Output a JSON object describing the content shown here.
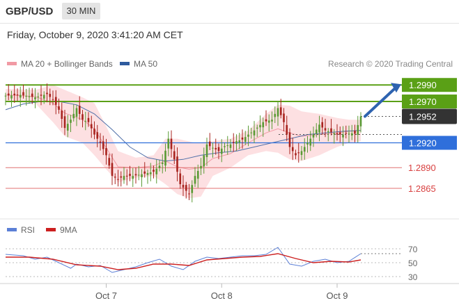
{
  "header": {
    "symbol": "GBP/USD",
    "timeframe": "30 MIN"
  },
  "date_line": "Friday, October 9, 2020 3:41:20 AM CET",
  "legend": {
    "ma20_bb": {
      "label": "MA 20 + Bollinger Bands",
      "color": "#f19aa4"
    },
    "ma50": {
      "label": "MA 50",
      "color": "#2e5b9e"
    }
  },
  "credit": "Research © 2020 Trading Central",
  "rsi_legend": {
    "rsi": {
      "label": "RSI",
      "color": "#5b7fd6"
    },
    "ma9": {
      "label": "9MA",
      "color": "#cc1f1f"
    }
  },
  "chart_data": [
    {
      "type": "line",
      "title": "GBP/USD 30 MIN",
      "ylim": [
        1.2828,
        1.3007
      ],
      "x_ticks": [
        {
          "label": "Oct 7",
          "index": 34
        },
        {
          "label": "Oct 8",
          "index": 73
        },
        {
          "label": "Oct 9",
          "index": 112
        }
      ],
      "price_series": {
        "name": "GBP/USD",
        "color_up": "#5a9a35",
        "color_down": "#a8241f",
        "anchors": [
          [
            0,
            1.2977
          ],
          [
            5,
            1.2978
          ],
          [
            10,
            1.2975
          ],
          [
            14,
            1.2979
          ],
          [
            16,
            1.2972
          ],
          [
            18,
            1.296
          ],
          [
            20,
            1.2938
          ],
          [
            22,
            1.2948
          ],
          [
            24,
            1.2962
          ],
          [
            26,
            1.2948
          ],
          [
            28,
            1.2945
          ],
          [
            30,
            1.293
          ],
          [
            32,
            1.292
          ],
          [
            34,
            1.2905
          ],
          [
            36,
            1.288
          ],
          [
            38,
            1.2876
          ],
          [
            40,
            1.288
          ],
          [
            43,
            1.288
          ],
          [
            46,
            1.2882
          ],
          [
            50,
            1.2885
          ],
          [
            53,
            1.2896
          ],
          [
            55,
            1.2925
          ],
          [
            57,
            1.29
          ],
          [
            59,
            1.287
          ],
          [
            61,
            1.2862
          ],
          [
            62,
            1.2858
          ],
          [
            64,
            1.288
          ],
          [
            66,
            1.2892
          ],
          [
            68,
            1.2918
          ],
          [
            70,
            1.2914
          ],
          [
            72,
            1.291
          ],
          [
            74,
            1.2916
          ],
          [
            76,
            1.2918
          ],
          [
            78,
            1.2922
          ],
          [
            80,
            1.2924
          ],
          [
            82,
            1.293
          ],
          [
            84,
            1.2935
          ],
          [
            87,
            1.2945
          ],
          [
            90,
            1.2948
          ],
          [
            92,
            1.2962
          ],
          [
            94,
            1.2945
          ],
          [
            96,
            1.2915
          ],
          [
            98,
            1.2905
          ],
          [
            100,
            1.291
          ],
          [
            102,
            1.292
          ],
          [
            104,
            1.293
          ],
          [
            106,
            1.2942
          ],
          [
            108,
            1.2935
          ],
          [
            110,
            1.2933
          ],
          [
            112,
            1.293
          ],
          [
            114,
            1.293
          ],
          [
            116,
            1.2932
          ],
          [
            118,
            1.2931
          ],
          [
            120,
            1.2952
          ]
        ],
        "last_price": 1.2952,
        "forecast_target": 1.299
      },
      "bollinger": {
        "name": "MA 20 + Bollinger Bands",
        "upper": [
          [
            0,
            1.2985
          ],
          [
            10,
            1.2984
          ],
          [
            16,
            1.299
          ],
          [
            20,
            1.2984
          ],
          [
            26,
            1.2975
          ],
          [
            30,
            1.2968
          ],
          [
            34,
            1.294
          ],
          [
            38,
            1.291
          ],
          [
            44,
            1.2902
          ],
          [
            50,
            1.2905
          ],
          [
            54,
            1.2925
          ],
          [
            58,
            1.2925
          ],
          [
            64,
            1.292
          ],
          [
            70,
            1.2922
          ],
          [
            76,
            1.2925
          ],
          [
            82,
            1.2935
          ],
          [
            88,
            1.2955
          ],
          [
            92,
            1.2966
          ],
          [
            96,
            1.2965
          ],
          [
            100,
            1.2958
          ],
          [
            106,
            1.2955
          ],
          [
            112,
            1.295
          ],
          [
            116,
            1.2948
          ],
          [
            120,
            1.2948
          ]
        ],
        "lower": [
          [
            0,
            1.297
          ],
          [
            10,
            1.2968
          ],
          [
            16,
            1.2945
          ],
          [
            20,
            1.2928
          ],
          [
            26,
            1.292
          ],
          [
            30,
            1.2905
          ],
          [
            34,
            1.2888
          ],
          [
            38,
            1.2872
          ],
          [
            44,
            1.2878
          ],
          [
            50,
            1.288
          ],
          [
            54,
            1.287
          ],
          [
            58,
            1.2858
          ],
          [
            62,
            1.2853
          ],
          [
            66,
            1.2855
          ],
          [
            70,
            1.288
          ],
          [
            76,
            1.289
          ],
          [
            82,
            1.2905
          ],
          [
            88,
            1.291
          ],
          [
            92,
            1.2908
          ],
          [
            96,
            1.29
          ],
          [
            100,
            1.2898
          ],
          [
            106,
            1.2905
          ],
          [
            112,
            1.2915
          ],
          [
            116,
            1.292
          ],
          [
            120,
            1.2922
          ]
        ],
        "middle": [
          [
            0,
            1.2978
          ],
          [
            10,
            1.2976
          ],
          [
            16,
            1.2968
          ],
          [
            20,
            1.2956
          ],
          [
            26,
            1.2948
          ],
          [
            30,
            1.2937
          ],
          [
            34,
            1.2914
          ],
          [
            38,
            1.2891
          ],
          [
            44,
            1.289
          ],
          [
            50,
            1.2892
          ],
          [
            54,
            1.2898
          ],
          [
            58,
            1.2891
          ],
          [
            62,
            1.2888
          ],
          [
            66,
            1.289
          ],
          [
            70,
            1.2901
          ],
          [
            76,
            1.2907
          ],
          [
            82,
            1.292
          ],
          [
            88,
            1.2932
          ],
          [
            92,
            1.2937
          ],
          [
            96,
            1.2932
          ],
          [
            100,
            1.2928
          ],
          [
            106,
            1.293
          ],
          [
            112,
            1.2932
          ],
          [
            116,
            1.2934
          ],
          [
            120,
            1.2935
          ]
        ]
      },
      "ma50": {
        "name": "MA 50",
        "values": [
          [
            0,
            1.296
          ],
          [
            6,
            1.2967
          ],
          [
            12,
            1.297
          ],
          [
            18,
            1.297
          ],
          [
            24,
            1.2966
          ],
          [
            30,
            1.2955
          ],
          [
            36,
            1.2936
          ],
          [
            42,
            1.2915
          ],
          [
            48,
            1.2902
          ],
          [
            54,
            1.2898
          ],
          [
            60,
            1.29
          ],
          [
            66,
            1.2905
          ],
          [
            72,
            1.2908
          ],
          [
            78,
            1.291
          ],
          [
            84,
            1.2915
          ],
          [
            90,
            1.292
          ],
          [
            96,
            1.2925
          ],
          [
            102,
            1.293
          ],
          [
            108,
            1.2932
          ],
          [
            114,
            1.2934
          ],
          [
            120,
            1.2935
          ]
        ]
      },
      "levels": [
        {
          "value": 1.299,
          "label": "1.2990",
          "kind": "resistance",
          "color": "#5aa016"
        },
        {
          "value": 1.297,
          "label": "1.2970",
          "kind": "resistance",
          "color": "#5aa016"
        },
        {
          "value": 1.2952,
          "label": "1.2952",
          "kind": "last",
          "color": "#333333"
        },
        {
          "value": 1.292,
          "label": "1.2920",
          "kind": "pivot",
          "color": "#2f6fdb"
        },
        {
          "value": 1.289,
          "label": "1.2890",
          "kind": "support",
          "color": "#e07070"
        },
        {
          "value": 1.2865,
          "label": "1.2865",
          "kind": "support",
          "color": "#e07070"
        }
      ]
    },
    {
      "type": "line",
      "title": "RSI",
      "ylim": [
        20,
        80
      ],
      "y_ticks": [
        70,
        50,
        30
      ],
      "series": [
        {
          "name": "RSI",
          "values": [
            [
              0,
              62
            ],
            [
              6,
              60
            ],
            [
              10,
              55
            ],
            [
              14,
              58
            ],
            [
              18,
              50
            ],
            [
              22,
              42
            ],
            [
              24,
              48
            ],
            [
              28,
              44
            ],
            [
              32,
              46
            ],
            [
              36,
              36
            ],
            [
              40,
              40
            ],
            [
              44,
              44
            ],
            [
              48,
              50
            ],
            [
              52,
              55
            ],
            [
              56,
              45
            ],
            [
              60,
              40
            ],
            [
              64,
              52
            ],
            [
              68,
              58
            ],
            [
              72,
              56
            ],
            [
              76,
              58
            ],
            [
              80,
              60
            ],
            [
              84,
              60
            ],
            [
              88,
              62
            ],
            [
              92,
              72
            ],
            [
              96,
              48
            ],
            [
              100,
              45
            ],
            [
              104,
              52
            ],
            [
              108,
              55
            ],
            [
              112,
              50
            ],
            [
              116,
              52
            ],
            [
              120,
              63
            ]
          ]
        },
        {
          "name": "9MA",
          "values": [
            [
              0,
              58
            ],
            [
              8,
              58
            ],
            [
              16,
              55
            ],
            [
              24,
              47
            ],
            [
              32,
              45
            ],
            [
              38,
              40
            ],
            [
              44,
              42
            ],
            [
              50,
              48
            ],
            [
              56,
              48
            ],
            [
              62,
              46
            ],
            [
              68,
              54
            ],
            [
              74,
              56
            ],
            [
              80,
              58
            ],
            [
              86,
              59
            ],
            [
              92,
              63
            ],
            [
              98,
              56
            ],
            [
              104,
              50
            ],
            [
              110,
              52
            ],
            [
              116,
              51
            ],
            [
              120,
              54
            ]
          ]
        }
      ]
    }
  ]
}
